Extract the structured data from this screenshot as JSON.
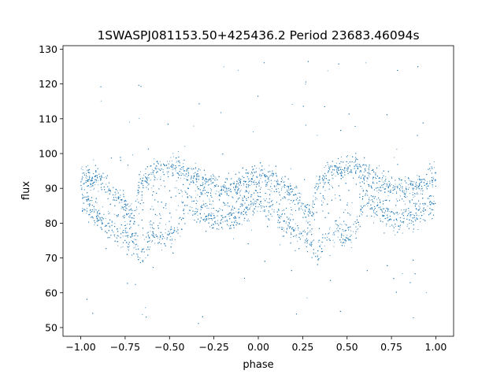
{
  "chart_data": {
    "type": "scatter",
    "title": "1SWASPJ081153.50+425436.2 Period 23683.46094s",
    "xlabel": "phase",
    "ylabel": "flux",
    "xlim": [
      -1.1,
      1.1
    ],
    "ylim": [
      47.5,
      131
    ],
    "x_ticks": [
      -1.0,
      -0.75,
      -0.5,
      -0.25,
      0.0,
      0.25,
      0.5,
      0.75,
      1.0
    ],
    "x_tick_labels": [
      "−1.00",
      "−0.75",
      "−0.50",
      "−0.25",
      "0.00",
      "0.25",
      "0.50",
      "0.75",
      "1.00"
    ],
    "y_ticks": [
      50,
      60,
      70,
      80,
      90,
      100,
      110,
      120,
      130
    ],
    "y_tick_labels": [
      "50",
      "60",
      "70",
      "80",
      "90",
      "100",
      "110",
      "120",
      "130"
    ],
    "grid": false,
    "legend": "none",
    "marker_color": "#1f77b4",
    "series": [
      {
        "phase_range": [
          -1.0,
          1.0
        ],
        "point_count": "dense",
        "folded_period_in_phase": 1.0,
        "light_curve_profile": [
          {
            "phase": 0.0,
            "upper_branch_flux": 94,
            "lower_branch_flux": 86
          },
          {
            "phase": 0.1,
            "upper_branch_flux": 93,
            "lower_branch_flux": 82
          },
          {
            "phase": 0.2,
            "upper_branch_flux": 88,
            "lower_branch_flux": 77
          },
          {
            "phase": 0.3,
            "upper_branch_flux": 82,
            "lower_branch_flux": 74
          },
          {
            "phase": 0.33,
            "upper_branch_flux": 91,
            "lower_branch_flux": 70
          },
          {
            "phase": 0.4,
            "upper_branch_flux": 95,
            "lower_branch_flux": 77
          },
          {
            "phase": 0.5,
            "upper_branch_flux": 96,
            "lower_branch_flux": 76
          },
          {
            "phase": 0.55,
            "upper_branch_flux": 96,
            "lower_branch_flux": 78
          },
          {
            "phase": 0.6,
            "upper_branch_flux": 95,
            "lower_branch_flux": 86
          },
          {
            "phase": 0.7,
            "upper_branch_flux": 92,
            "lower_branch_flux": 82
          },
          {
            "phase": 0.8,
            "upper_branch_flux": 90,
            "lower_branch_flux": 80
          },
          {
            "phase": 0.9,
            "upper_branch_flux": 91,
            "lower_branch_flux": 82
          },
          {
            "phase": 1.0,
            "upper_branch_flux": 94,
            "lower_branch_flux": 86
          }
        ],
        "scatter_extent_flux": [
          51,
          127
        ]
      }
    ]
  }
}
